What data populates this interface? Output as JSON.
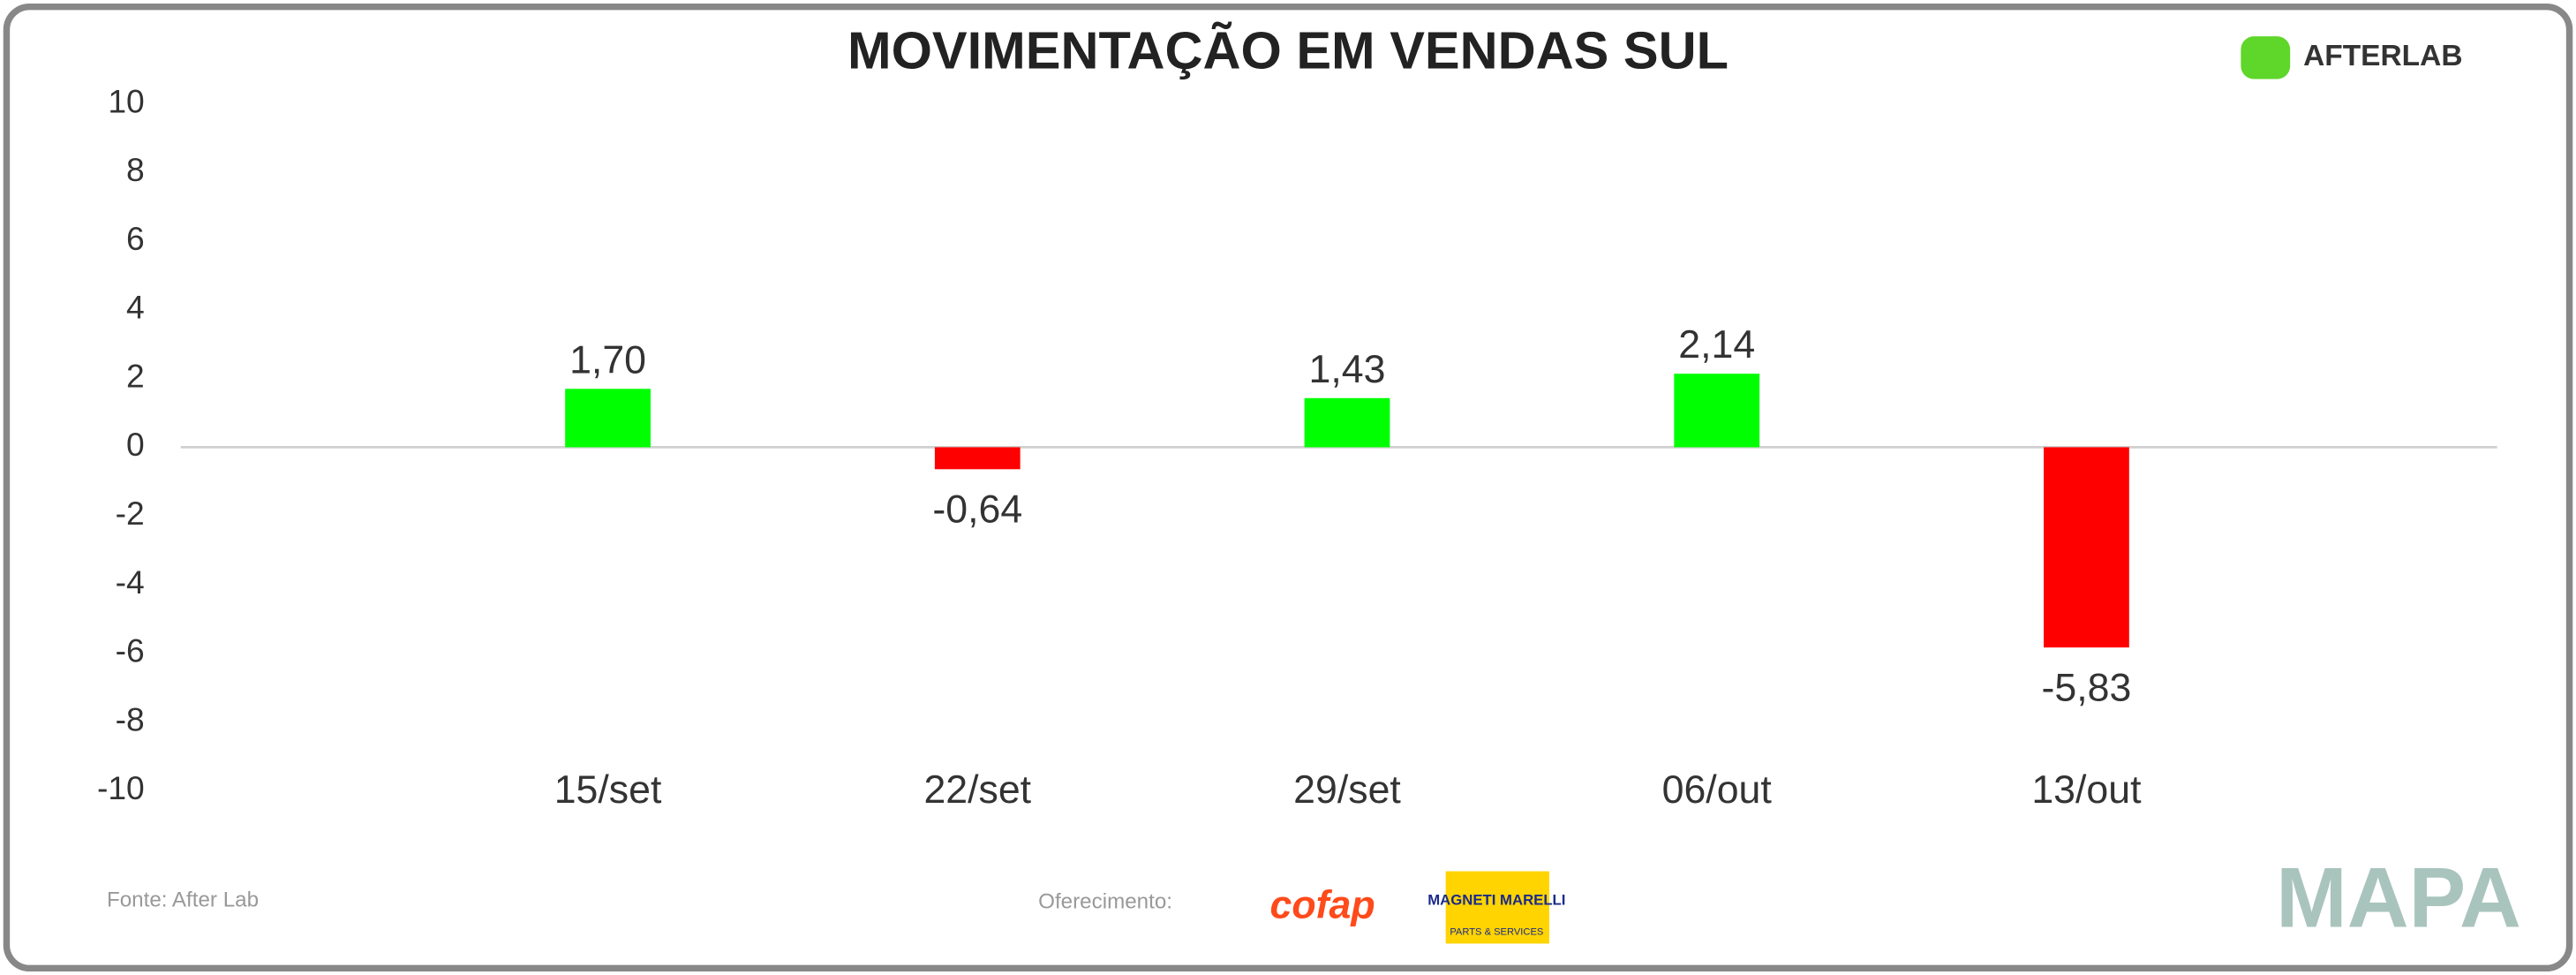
{
  "chart_data": {
    "type": "bar",
    "title": "MOVIMENTAÇÃO EM VENDAS SUL",
    "categories": [
      "15/set",
      "22/set",
      "29/set",
      "06/out",
      "13/out"
    ],
    "values": [
      1.7,
      -0.64,
      1.43,
      2.14,
      -5.83
    ],
    "value_labels": [
      "1,70",
      "-0,64",
      "1,43",
      "2,14",
      "-5,83"
    ],
    "colors": [
      "#00ff00",
      "#ff0000",
      "#00ff00",
      "#00ff00",
      "#ff0000"
    ],
    "ylim": [
      -10,
      10
    ],
    "yticks": [
      -10,
      -8,
      -6,
      -4,
      -2,
      0,
      2,
      4,
      6,
      8,
      10
    ],
    "grid": false
  },
  "footer": {
    "source": "Fonte: After Lab",
    "sponsor": "Oferecimento:"
  },
  "logos": {
    "afterlab": "AFTERLAB",
    "cofap": "cofap",
    "magneti": "MAGNETI MARELLI",
    "parts": "PARTS & SERVICES",
    "mapa": "MAPA"
  }
}
